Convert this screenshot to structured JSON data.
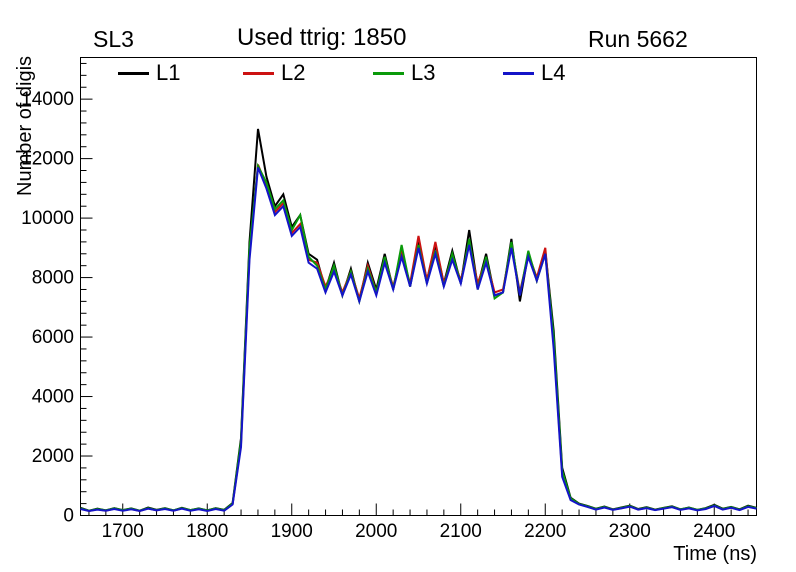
{
  "header": {
    "left": "SL3",
    "center": "Used ttrig: 1850",
    "right": "Run 5662"
  },
  "axis": {
    "xlabel": "Time (ns)",
    "ylabel": "Number of digis",
    "xticks": [
      1700,
      1800,
      1900,
      2000,
      2100,
      2200,
      2300,
      2400
    ],
    "yticks": [
      0,
      2000,
      4000,
      6000,
      8000,
      10000,
      12000,
      14000
    ],
    "x_minor_step": 20,
    "y_minor_step": 400
  },
  "legend": [
    {
      "label": "L1",
      "color": "#000000"
    },
    {
      "label": "L2",
      "color": "#cc1111"
    },
    {
      "label": "L3",
      "color": "#0a9a0a"
    },
    {
      "label": "L4",
      "color": "#1414c8"
    }
  ],
  "chart_data": {
    "type": "line",
    "title": "Used ttrig: 1850",
    "xlabel": "Time (ns)",
    "ylabel": "Number of digis",
    "xlim": [
      1650,
      2450
    ],
    "ylim": [
      0,
      15400
    ],
    "grid": false,
    "legend_position": "top-inside",
    "x": [
      1650,
      1660,
      1670,
      1680,
      1690,
      1700,
      1710,
      1720,
      1730,
      1740,
      1750,
      1760,
      1770,
      1780,
      1790,
      1800,
      1810,
      1820,
      1830,
      1840,
      1850,
      1860,
      1870,
      1880,
      1890,
      1900,
      1910,
      1920,
      1930,
      1940,
      1950,
      1960,
      1970,
      1980,
      1990,
      2000,
      2010,
      2020,
      2030,
      2040,
      2050,
      2060,
      2070,
      2080,
      2090,
      2100,
      2110,
      2120,
      2130,
      2140,
      2150,
      2160,
      2170,
      2180,
      2190,
      2200,
      2210,
      2220,
      2230,
      2240,
      2250,
      2260,
      2270,
      2280,
      2290,
      2300,
      2310,
      2320,
      2330,
      2340,
      2350,
      2360,
      2370,
      2380,
      2390,
      2400,
      2410,
      2420,
      2430,
      2440,
      2450
    ],
    "series": [
      {
        "name": "L1",
        "color": "#000000",
        "values": [
          260,
          160,
          230,
          170,
          250,
          180,
          240,
          160,
          270,
          190,
          250,
          170,
          260,
          180,
          240,
          170,
          250,
          190,
          420,
          2600,
          9200,
          13000,
          11400,
          10400,
          10800,
          9700,
          10100,
          8800,
          8600,
          7600,
          8500,
          7400,
          8300,
          7200,
          8500,
          7600,
          8800,
          7600,
          9000,
          7700,
          9200,
          7900,
          9100,
          7800,
          8900,
          7800,
          9600,
          7700,
          8800,
          7400,
          7500,
          9300,
          7200,
          8800,
          7900,
          8900,
          6200,
          1600,
          600,
          400,
          320,
          230,
          300,
          210,
          270,
          330,
          220,
          280,
          200,
          260,
          310,
          210,
          270,
          190,
          250,
          360,
          230,
          290,
          210,
          330,
          260
        ]
      },
      {
        "name": "L2",
        "color": "#cc1111",
        "values": [
          230,
          150,
          210,
          160,
          230,
          170,
          220,
          150,
          240,
          170,
          230,
          160,
          240,
          170,
          220,
          160,
          230,
          170,
          380,
          2400,
          8800,
          11800,
          11100,
          10200,
          10500,
          9500,
          9800,
          8600,
          8500,
          7700,
          8300,
          7500,
          8200,
          7300,
          8400,
          7500,
          8600,
          7700,
          8800,
          7800,
          9400,
          7900,
          9200,
          7800,
          8700,
          7900,
          9200,
          7800,
          8600,
          7500,
          7600,
          9100,
          7500,
          8800,
          8000,
          9000,
          5800,
          1400,
          550,
          380,
          300,
          210,
          280,
          200,
          250,
          310,
          200,
          260,
          190,
          240,
          290,
          200,
          250,
          180,
          230,
          330,
          210,
          270,
          190,
          300,
          240
        ]
      },
      {
        "name": "L3",
        "color": "#0a9a0a",
        "values": [
          240,
          160,
          220,
          170,
          240,
          180,
          230,
          160,
          250,
          180,
          240,
          170,
          250,
          180,
          230,
          170,
          240,
          180,
          400,
          2500,
          9000,
          11750,
          11200,
          10300,
          10600,
          9600,
          10100,
          8700,
          8400,
          7600,
          8400,
          7400,
          8200,
          7200,
          8300,
          7500,
          8700,
          7600,
          9100,
          7700,
          9100,
          7800,
          8900,
          7700,
          8800,
          7800,
          9300,
          7600,
          8700,
          7300,
          7500,
          9200,
          7400,
          8900,
          7900,
          8800,
          6000,
          1500,
          580,
          390,
          310,
          220,
          290,
          200,
          260,
          320,
          210,
          270,
          190,
          250,
          300,
          210,
          260,
          190,
          240,
          340,
          220,
          280,
          200,
          310,
          250
        ]
      },
      {
        "name": "L4",
        "color": "#1414c8",
        "values": [
          220,
          150,
          200,
          160,
          220,
          160,
          210,
          150,
          230,
          170,
          220,
          160,
          230,
          160,
          210,
          150,
          220,
          160,
          370,
          2300,
          8600,
          11700,
          11000,
          10100,
          10400,
          9400,
          9700,
          8500,
          8300,
          7500,
          8200,
          7400,
          8100,
          7200,
          8200,
          7400,
          8500,
          7600,
          8700,
          7700,
          9000,
          7800,
          8800,
          7700,
          8600,
          7800,
          9100,
          7600,
          8500,
          7400,
          7500,
          9000,
          7400,
          8700,
          7900,
          8800,
          5600,
          1300,
          520,
          370,
          290,
          200,
          270,
          190,
          240,
          300,
          200,
          250,
          180,
          230,
          280,
          190,
          240,
          170,
          220,
          320,
          200,
          260,
          180,
          290,
          230
        ]
      }
    ]
  }
}
